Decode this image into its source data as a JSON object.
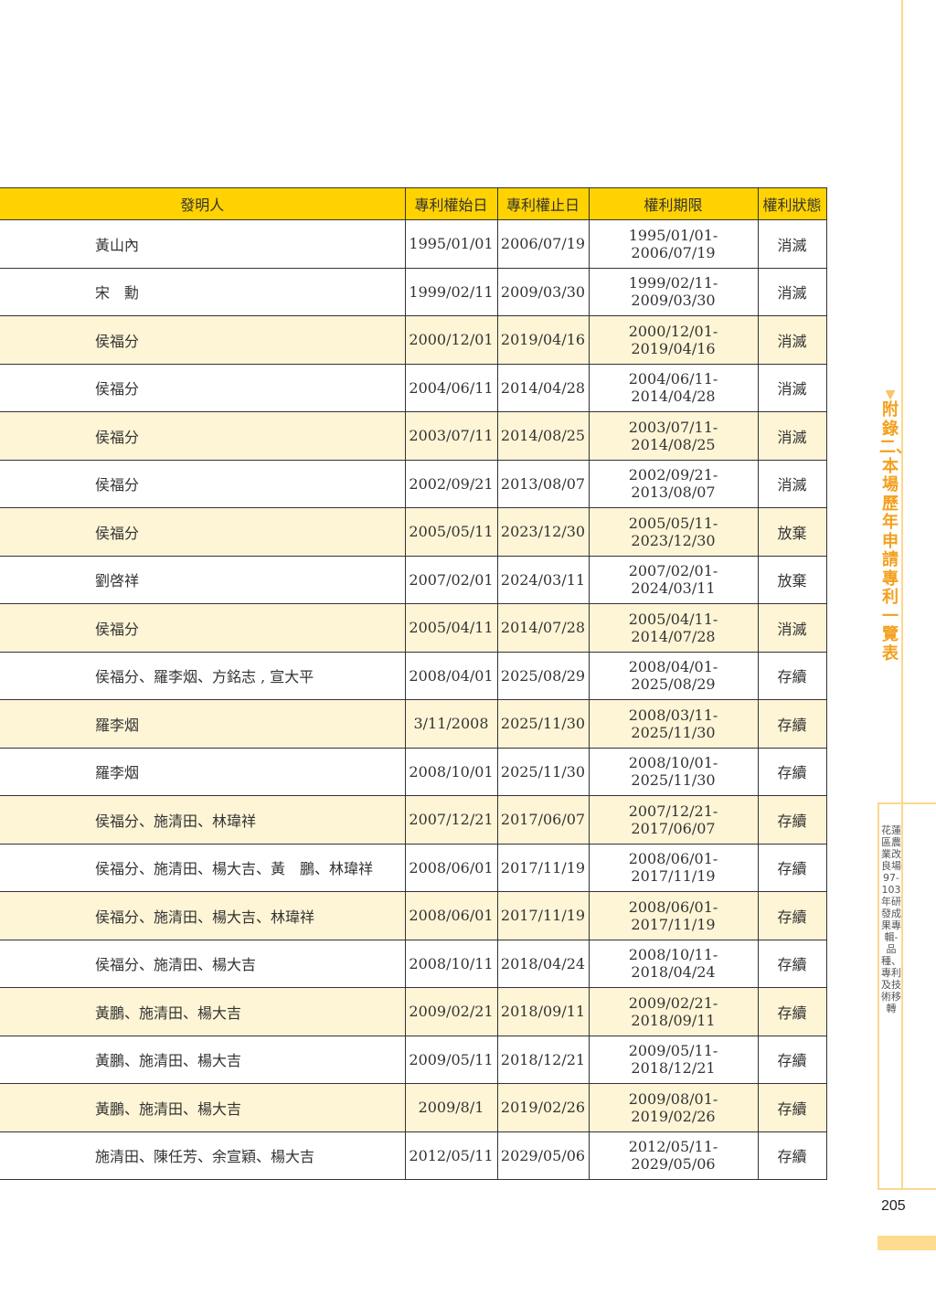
{
  "table": {
    "headers": [
      "發明人",
      "專利權始日",
      "專利權止日",
      "權利期限",
      "權利狀態"
    ],
    "rows": [
      [
        "黃山內",
        "1995/01/01",
        "2006/07/19",
        "1995/01/01-2006/07/19",
        "消滅"
      ],
      [
        "宋　勳",
        "1999/02/11",
        "2009/03/30",
        "1999/02/11-2009/03/30",
        "消滅"
      ],
      [
        "侯福分",
        "2000/12/01",
        "2019/04/16",
        "2000/12/01-2019/04/16",
        "消滅"
      ],
      [
        "侯福分",
        "2004/06/11",
        "2014/04/28",
        "2004/06/11-2014/04/28",
        "消滅"
      ],
      [
        "侯福分",
        "2003/07/11",
        "2014/08/25",
        "2003/07/11-2014/08/25",
        "消滅"
      ],
      [
        "侯福分",
        "2002/09/21",
        "2013/08/07",
        "2002/09/21-2013/08/07",
        "消滅"
      ],
      [
        "侯福分",
        "2005/05/11",
        "2023/12/30",
        "2005/05/11-2023/12/30",
        "放棄"
      ],
      [
        "劉啓祥",
        "2007/02/01",
        "2024/03/11",
        "2007/02/01-2024/03/11",
        "放棄"
      ],
      [
        "侯福分",
        "2005/04/11",
        "2014/07/28",
        "2005/04/11-2014/07/28",
        "消滅"
      ],
      [
        "侯福分、羅李烟、方銘志 , 宣大平",
        "2008/04/01",
        "2025/08/29",
        "2008/04/01-2025/08/29",
        "存續"
      ],
      [
        "羅李烟",
        "3/11/2008",
        "2025/11/30",
        "2008/03/11-2025/11/30",
        "存續"
      ],
      [
        "羅李烟",
        "2008/10/01",
        "2025/11/30",
        "2008/10/01-2025/11/30",
        "存續"
      ],
      [
        "侯福分、施清田、林瑋祥",
        "2007/12/21",
        "2017/06/07",
        "2007/12/21-2017/06/07",
        "存續"
      ],
      [
        "侯福分、施清田、楊大吉、黃　鵬、林瑋祥",
        "2008/06/01",
        "2017/11/19",
        "2008/06/01-2017/11/19",
        "存續"
      ],
      [
        "侯福分、施清田、楊大吉、林瑋祥",
        "2008/06/01",
        "2017/11/19",
        "2008/06/01-2017/11/19",
        "存續"
      ],
      [
        "侯福分、施清田、楊大吉",
        "2008/10/11",
        "2018/04/24",
        "2008/10/11-2018/04/24",
        "存續"
      ],
      [
        "黃鵬、施清田、楊大吉",
        "2009/02/21",
        "2018/09/11",
        "2009/02/21-2018/09/11",
        "存續"
      ],
      [
        "黃鵬、施清田、楊大吉",
        "2009/05/11",
        "2018/12/21",
        "2009/05/11-2018/12/21",
        "存續"
      ],
      [
        "黃鵬、施清田、楊大吉",
        "2009/8/1",
        "2019/02/26",
        "2009/08/01-2019/02/26",
        "存續"
      ],
      [
        "施清田、陳任芳、余宣穎、楊大吉",
        "2012/05/11",
        "2029/05/06",
        "2012/05/11-2029/05/06",
        "存續"
      ]
    ]
  },
  "side": {
    "section_title": "附錄二、本場歷年申請專利一覽表",
    "book_title": "花蓮區農業改良場97-103年研發成果專輯-品種、專利及技術移轉",
    "page_number": "205"
  },
  "colors": {
    "header": "#ffd200",
    "alt_row": "#fdf5d6",
    "accent": "#f4a01e"
  }
}
